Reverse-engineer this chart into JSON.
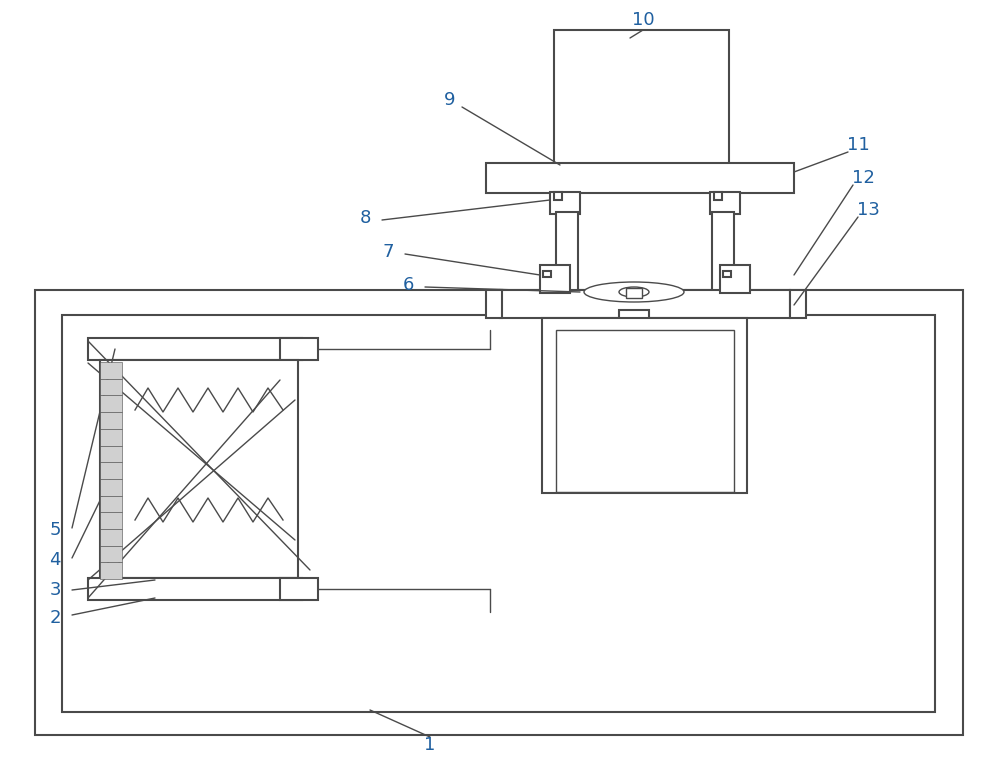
{
  "bg_color": "#ffffff",
  "line_color": "#4a4a4a",
  "fig_width": 10.0,
  "fig_height": 7.84,
  "label_color": "#2060a0",
  "label_fs": 13
}
